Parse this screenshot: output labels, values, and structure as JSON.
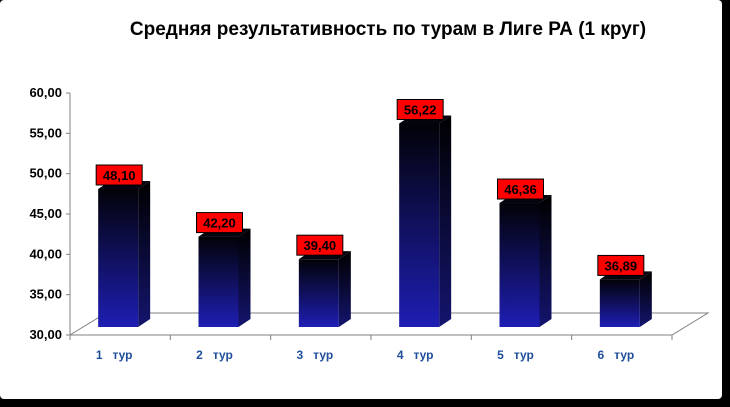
{
  "chart_data": {
    "type": "bar",
    "title": "Средняя результативность по турам в Лиге РА (1 круг)",
    "categories": [
      "1   тур",
      "2   тур",
      "3   тур",
      "4   тур",
      "5   тур",
      "6   тур"
    ],
    "values": [
      48.1,
      42.2,
      39.4,
      56.22,
      46.36,
      36.89
    ],
    "data_labels": [
      "48,10",
      "42,20",
      "39,40",
      "56,22",
      "46,36",
      "36,89"
    ],
    "ylim": [
      30,
      60
    ],
    "yticks": [
      "30,00",
      "35,00",
      "40,00",
      "45,00",
      "50,00",
      "55,00",
      "60,00"
    ],
    "xlabel": "",
    "ylabel": "",
    "grid": false,
    "legend": "none",
    "colors": {
      "bar_top": "#020208",
      "bar_bottom": "#1e1eb4",
      "label_bg": "#ff0000",
      "xtick_text": "#1f4e9a"
    }
  }
}
